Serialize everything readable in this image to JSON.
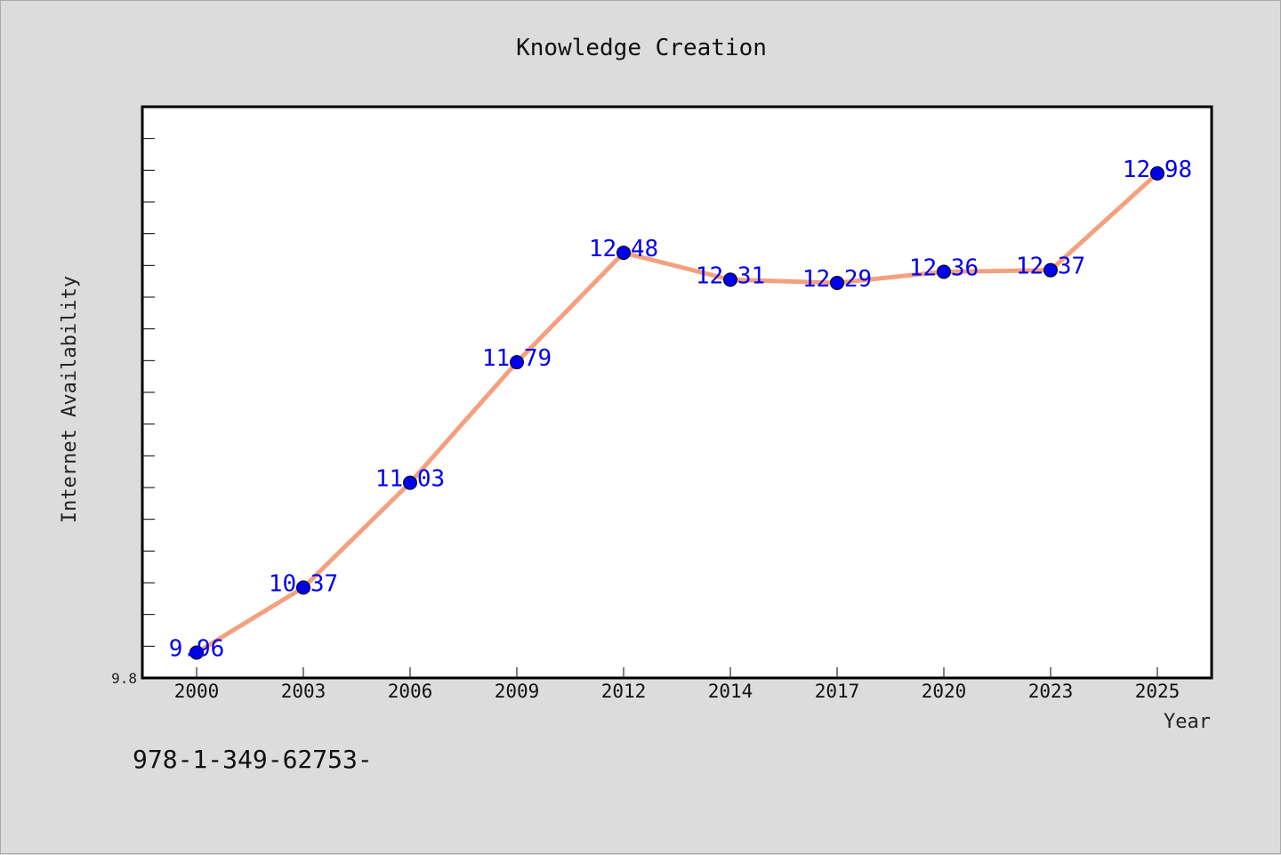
{
  "footnote": "978-1-349-62753-",
  "colors": {
    "background": "#dcdcdc",
    "plot_background": "#ffffff",
    "line": "#f4a07f",
    "marker": "#0000ee",
    "data_label": "#0000ee"
  },
  "chart_data": {
    "type": "line",
    "title": "Knowledge Creation",
    "xlabel": "Year",
    "ylabel": "Internet Availability",
    "categories": [
      "2000",
      "2003",
      "2006",
      "2009",
      "2012",
      "2014",
      "2017",
      "2020",
      "2023",
      "2025"
    ],
    "series": [
      {
        "values": [
          9.96,
          10.37,
          11.03,
          11.79,
          12.48,
          12.31,
          12.29,
          12.36,
          12.37,
          12.98
        ],
        "labels": [
          "9.96",
          "10.37",
          "11.03",
          "11.79",
          "12.48",
          "12.31",
          "12.29",
          "12.36",
          "12.37",
          "12.98"
        ]
      }
    ],
    "ylim": [
      9.8,
      13.4
    ],
    "ytick_labels": [
      "9.8"
    ],
    "y_minor_step": 0.2,
    "grid": false,
    "legend": "none"
  }
}
